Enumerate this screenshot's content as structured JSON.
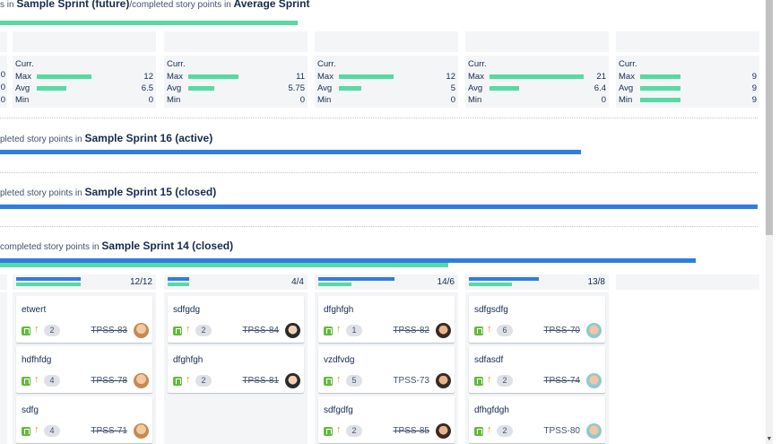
{
  "sprints": [
    {
      "prefix": "s in ",
      "name": "Sample Sprint (future)",
      "mid": "/completed story points in ",
      "name2": "Average Sprint"
    },
    {
      "prefix": "pleted story points in ",
      "name": "Sample Sprint 16 (active)"
    },
    {
      "prefix": "pleted story points in ",
      "name": "Sample Sprint 15 (closed)"
    },
    {
      "prefix": "completed story points in ",
      "name": "Sample Sprint 14 (closed)"
    }
  ],
  "stats": {
    "curr_label": "Curr.",
    "max_label": "Max",
    "avg_label": "Avg",
    "min_label": "Min",
    "partial": [
      "0",
      "0",
      "0"
    ],
    "columns": [
      {
        "max": "12",
        "avg": "6.5",
        "min": "0",
        "max_frac": 0.58,
        "avg_frac": 0.31
      },
      {
        "max": "11",
        "avg": "5.75",
        "min": "0",
        "max_frac": 0.53,
        "avg_frac": 0.28
      },
      {
        "max": "12",
        "avg": "5",
        "min": "0",
        "max_frac": 0.58,
        "avg_frac": 0.24
      },
      {
        "max": "21",
        "avg": "6.4",
        "min": "0",
        "max_frac": 1.0,
        "avg_frac": 0.31
      },
      {
        "max": "9",
        "avg": "9",
        "min": "9",
        "max_frac": 0.43,
        "avg_frac": 0.43,
        "min_frac": 0.43
      }
    ]
  },
  "columns": [
    {
      "count": "12/12",
      "blue_frac": 1.0,
      "green_frac": 1.0,
      "cards": [
        {
          "summary": "etwert",
          "est": "2",
          "key": "TPSS-83",
          "done": true,
          "avatar": "av1"
        },
        {
          "summary": "hdfhfdg",
          "est": "4",
          "key": "TPSS-78",
          "done": true,
          "avatar": "av1"
        },
        {
          "summary": "sdfg",
          "est": "4",
          "key": "TPSS-71",
          "done": true,
          "avatar": "av1"
        }
      ]
    },
    {
      "count": "4/4",
      "blue_frac": 1.0,
      "green_frac": 1.0,
      "cards": [
        {
          "summary": "sdfgdg",
          "est": "2",
          "key": "TPSS-84",
          "done": true,
          "avatar": "av2"
        },
        {
          "summary": "dfghfgh",
          "est": "2",
          "key": "TPSS-81",
          "done": true,
          "avatar": "av2"
        }
      ]
    },
    {
      "count": "14/6",
      "blue_frac": 1.0,
      "green_frac": 0.43,
      "cards": [
        {
          "summary": "dfghfgh",
          "est": "1",
          "key": "TPSS-82",
          "done": true,
          "avatar": "av3"
        },
        {
          "summary": "vzdfvdg",
          "est": "5",
          "key": "TPSS-73",
          "done": false,
          "avatar": "av3"
        },
        {
          "summary": "sdfgdfg",
          "est": "2",
          "key": "TPSS-85",
          "done": true,
          "avatar": "av3"
        }
      ]
    },
    {
      "count": "13/8",
      "blue_frac": 1.0,
      "green_frac": 0.62,
      "cards": [
        {
          "summary": "sdfgsdfg",
          "est": "6",
          "key": "TPSS-70",
          "done": true,
          "avatar": "av4"
        },
        {
          "summary": "sdfasdf",
          "est": "2",
          "key": "TPSS-74",
          "done": true,
          "avatar": "av4"
        },
        {
          "summary": "dfhgfdgh",
          "est": "2",
          "key": "TPSS-80",
          "done": false,
          "avatar": "av4"
        }
      ]
    }
  ],
  "scroll_arrow": "▼"
}
